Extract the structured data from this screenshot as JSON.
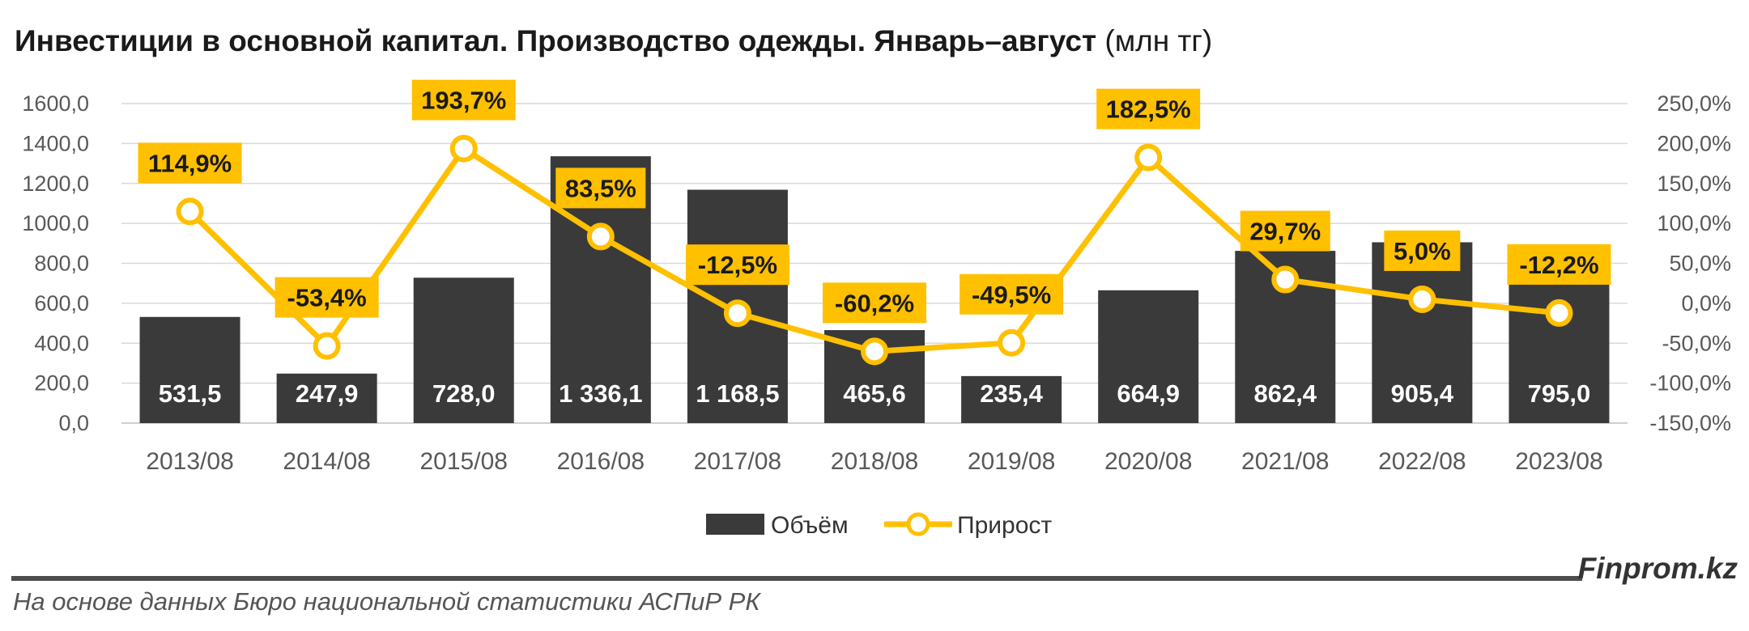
{
  "title": {
    "bold": "Инвестиции в основной капитал. Производство одежды. Январь–август",
    "unit": "(млн тг)"
  },
  "brand": "Finprom.kz",
  "source": "На основе данных Бюро национальной статистики АСПиР РК",
  "colors": {
    "bar": "#3a3a3a",
    "line": "#ffc000",
    "marker_fill": "#ffffff",
    "label_bg": "#ffc000"
  },
  "chart_data": {
    "type": "bar",
    "categories": [
      "2013/08",
      "2014/08",
      "2015/08",
      "2016/08",
      "2017/08",
      "2018/08",
      "2019/08",
      "2020/08",
      "2021/08",
      "2022/08",
      "2023/08"
    ],
    "series": [
      {
        "name": "Объём",
        "type": "bar",
        "axis": "left",
        "values": [
          531.5,
          247.9,
          728.0,
          1336.1,
          1168.5,
          465.6,
          235.4,
          664.9,
          862.4,
          905.4,
          795.0
        ],
        "labels": [
          "531,5",
          "247,9",
          "728,0",
          "1 336,1",
          "1 168,5",
          "465,6",
          "235,4",
          "664,9",
          "862,4",
          "905,4",
          "795,0"
        ]
      },
      {
        "name": "Прирост",
        "type": "line",
        "axis": "right",
        "values": [
          114.9,
          -53.4,
          193.7,
          83.5,
          -12.5,
          -60.2,
          -49.5,
          182.5,
          29.7,
          5.0,
          -12.2
        ],
        "labels": [
          "114,9%",
          "-53,4%",
          "193,7%",
          "83,5%",
          "-12,5%",
          "-60,2%",
          "-49,5%",
          "182,5%",
          "29,7%",
          "5,0%",
          "-12,2%"
        ]
      }
    ],
    "y_left": {
      "range": [
        0,
        1600
      ],
      "ticks": [
        "0,0",
        "200,0",
        "400,0",
        "600,0",
        "800,0",
        "1000,0",
        "1200,0",
        "1400,0",
        "1600,0"
      ]
    },
    "y_right": {
      "range": [
        -150,
        250
      ],
      "ticks": [
        "-150,0%",
        "-100,0%",
        "-50,0%",
        "0,0%",
        "50,0%",
        "100,0%",
        "150,0%",
        "200,0%",
        "250,0%"
      ]
    },
    "grid": true,
    "legend": "bottom-center"
  }
}
